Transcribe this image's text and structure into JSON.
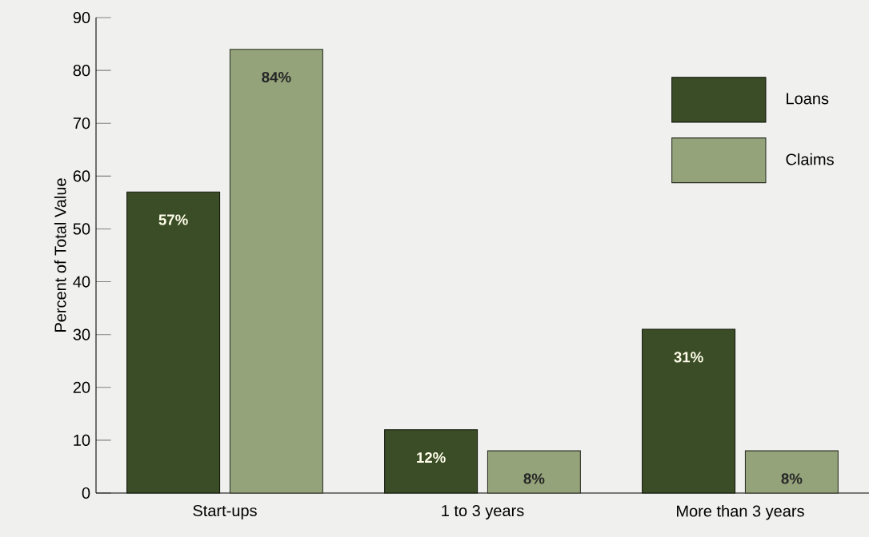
{
  "chart_data": {
    "type": "bar",
    "ylabel": "Percent of Total Value",
    "categories": [
      "Start-ups",
      "1 to 3 years",
      "More than 3 years"
    ],
    "series": [
      {
        "name": "Loans",
        "color": "#3b4d26",
        "values": [
          57,
          12,
          31
        ],
        "value_labels": [
          "57%",
          "12%",
          "31%"
        ]
      },
      {
        "name": "Claims",
        "color": "#94a37a",
        "values": [
          84,
          8,
          8
        ],
        "value_labels": [
          "84%",
          "8%",
          "8%"
        ]
      }
    ],
    "ylim": [
      0,
      90
    ],
    "yticks": [
      0,
      10,
      20,
      30,
      40,
      50,
      60,
      70,
      80,
      90
    ],
    "legend": "top right",
    "grid": false
  }
}
